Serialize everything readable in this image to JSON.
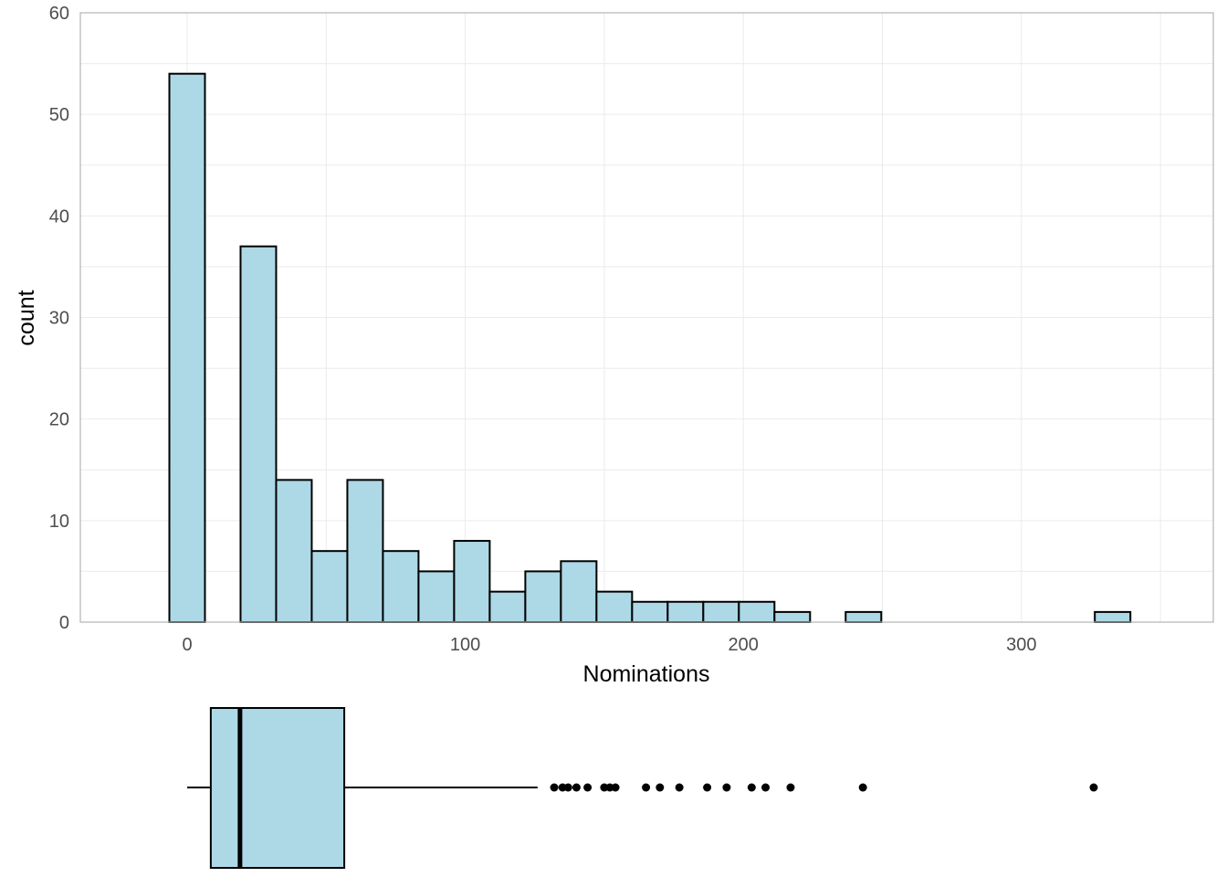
{
  "chart_data": [
    {
      "type": "bar",
      "kind": "histogram",
      "xlabel": "Nominations",
      "ylabel": "count",
      "xlim": [
        -38,
        370
      ],
      "ylim": [
        0,
        60
      ],
      "x_ticks": [
        0,
        100,
        200,
        300
      ],
      "y_ticks": [
        0,
        10,
        20,
        30,
        40,
        50,
        60
      ],
      "grid": true,
      "bin_width": 12.8,
      "bins": [
        {
          "x": 0,
          "count": 54
        },
        {
          "x": 12.8,
          "count": 0
        },
        {
          "x": 25.6,
          "count": 37
        },
        {
          "x": 38.4,
          "count": 14
        },
        {
          "x": 51.2,
          "count": 7
        },
        {
          "x": 64,
          "count": 14
        },
        {
          "x": 76.8,
          "count": 7
        },
        {
          "x": 89.6,
          "count": 5
        },
        {
          "x": 102.4,
          "count": 8
        },
        {
          "x": 115.2,
          "count": 3
        },
        {
          "x": 128,
          "count": 5
        },
        {
          "x": 140.8,
          "count": 6
        },
        {
          "x": 153.6,
          "count": 3
        },
        {
          "x": 166.4,
          "count": 2
        },
        {
          "x": 179.2,
          "count": 2
        },
        {
          "x": 192,
          "count": 2
        },
        {
          "x": 204.8,
          "count": 2
        },
        {
          "x": 217.6,
          "count": 1
        },
        {
          "x": 230.4,
          "count": 0
        },
        {
          "x": 243.2,
          "count": 1
        },
        {
          "x": 256,
          "count": 0
        },
        {
          "x": 268.8,
          "count": 0
        },
        {
          "x": 281.6,
          "count": 0
        },
        {
          "x": 294.4,
          "count": 0
        },
        {
          "x": 307.2,
          "count": 0
        },
        {
          "x": 320,
          "count": 0
        },
        {
          "x": 332.8,
          "count": 1
        }
      ],
      "fill_color": "#add8e6",
      "stroke_color": "#000000"
    },
    {
      "type": "boxplot",
      "orientation": "horizontal",
      "whisker_low": 0,
      "q1": 8.5,
      "median": 19,
      "q3": 56.5,
      "whisker_high": 126,
      "outliers": [
        132,
        135,
        137,
        140,
        144,
        150,
        152,
        154,
        165,
        170,
        177,
        187,
        194,
        203,
        208,
        217,
        243,
        326
      ],
      "fill_color": "#add8e6",
      "stroke_color": "#000000"
    }
  ]
}
